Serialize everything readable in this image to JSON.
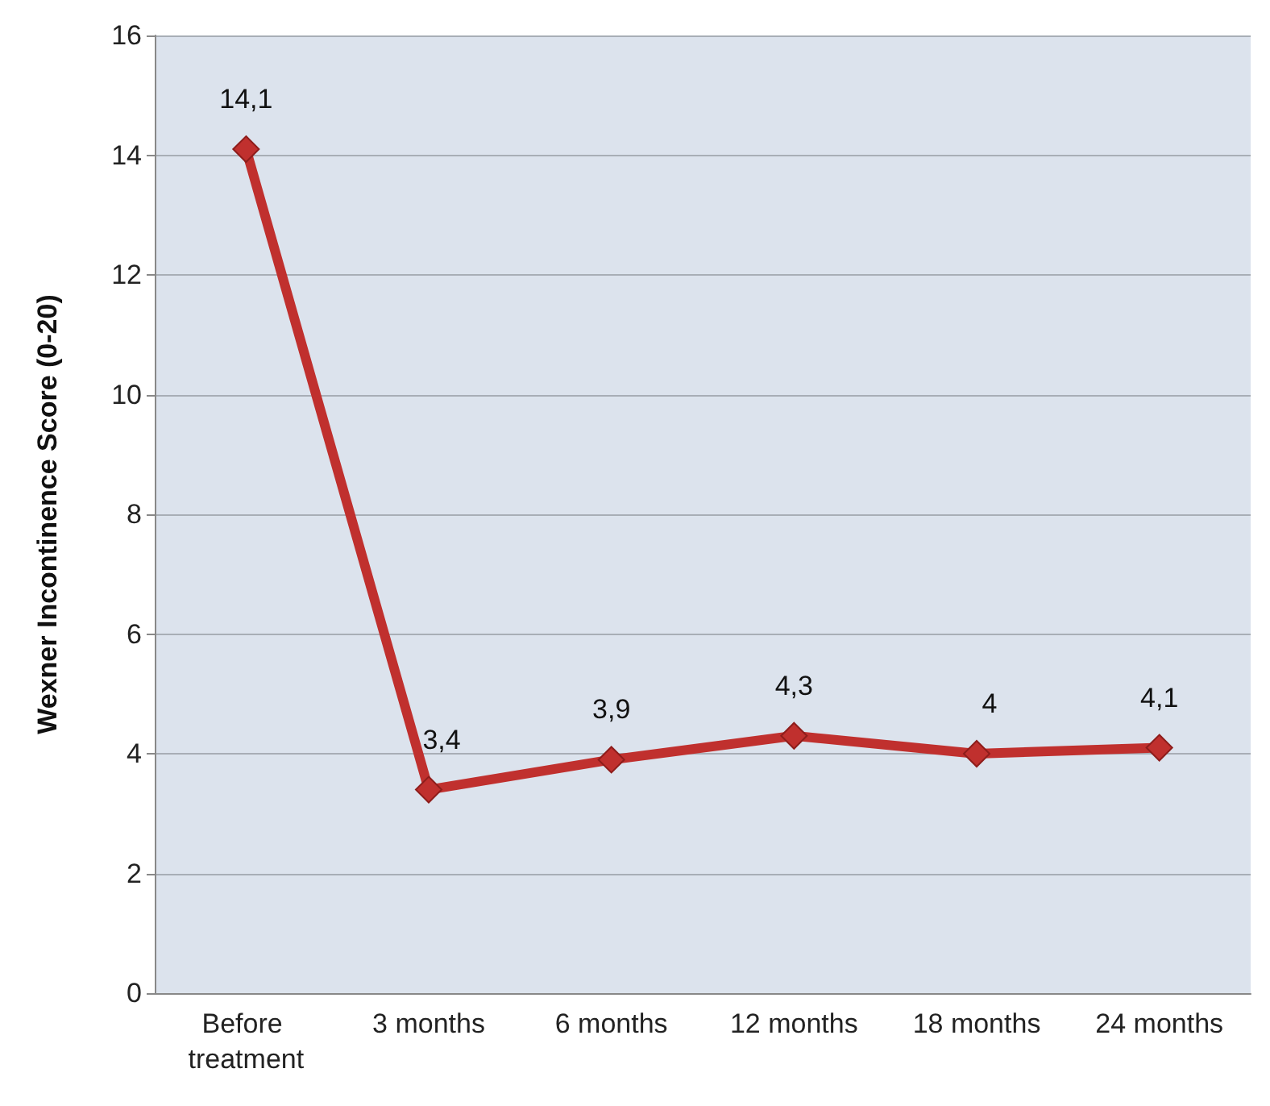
{
  "chart_data": {
    "type": "line",
    "ylabel": "Wexner Incontinence Score (0-20)",
    "categories": [
      "Before treatment",
      "3 months",
      "6 months",
      "12 months",
      "18 months",
      "24 months"
    ],
    "series": [
      {
        "color": "#c0302e",
        "values": [
          14.1,
          3.4,
          3.9,
          4.3,
          4,
          4.1
        ],
        "value_labels": [
          "14,1",
          "3,4",
          "3,9",
          "4,3",
          "4",
          "4,1"
        ]
      }
    ],
    "ylim": [
      0,
      16
    ],
    "yticks": [
      0,
      2,
      4,
      6,
      8,
      10,
      12,
      14,
      16
    ],
    "grid": "y",
    "marker": "diamond",
    "line_style": "solid"
  }
}
